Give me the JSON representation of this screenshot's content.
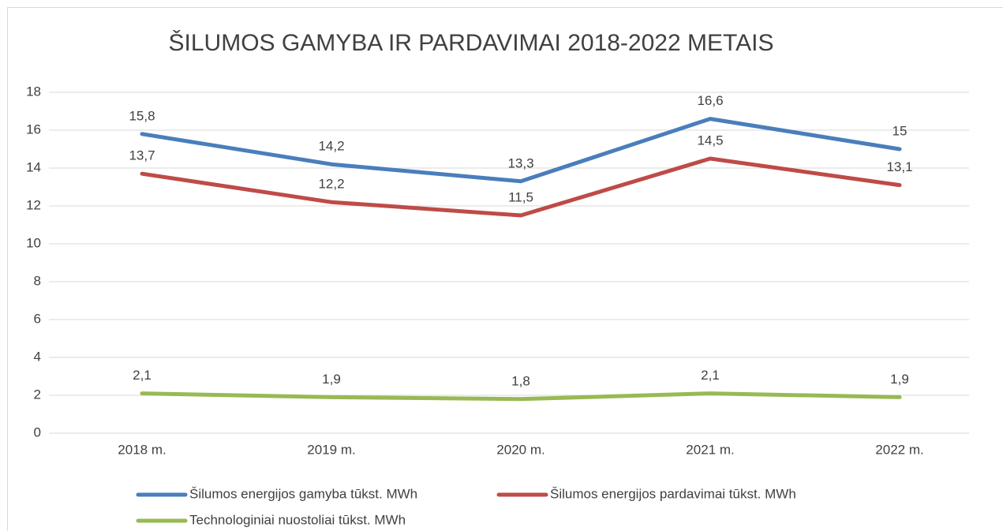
{
  "chart_data": {
    "type": "line",
    "title": "ŠILUMOS GAMYBA IR PARDAVIMAI 2018-2022 METAIS",
    "categories": [
      "2018 m.",
      "2019 m.",
      "2020 m.",
      "2021 m.",
      "2022 m."
    ],
    "series": [
      {
        "name": "Šilumos energijos gamyba tūkst. MWh",
        "color": "#4a7ebb",
        "values": [
          15.8,
          14.2,
          13.3,
          16.6,
          15
        ],
        "value_labels": [
          "15,8",
          "14,2",
          "13,3",
          "16,6",
          "15"
        ]
      },
      {
        "name": "Šilumos energijos pardavimai tūkst. MWh",
        "color": "#be4b48",
        "values": [
          13.7,
          12.2,
          11.5,
          14.5,
          13.1
        ],
        "value_labels": [
          "13,7",
          "12,2",
          "11,5",
          "14,5",
          "13,1"
        ]
      },
      {
        "name": "Technologiniai nuostoliai tūkst. MWh",
        "color": "#98b954",
        "values": [
          2.1,
          1.9,
          1.8,
          2.1,
          1.9
        ],
        "value_labels": [
          "2,1",
          "1,9",
          "1,8",
          "2,1",
          "1,9"
        ]
      }
    ],
    "ylim": [
      0,
      18
    ],
    "yticks": [
      0,
      2,
      4,
      6,
      8,
      10,
      12,
      14,
      16,
      18
    ],
    "grid": true,
    "legend": "bottom"
  }
}
